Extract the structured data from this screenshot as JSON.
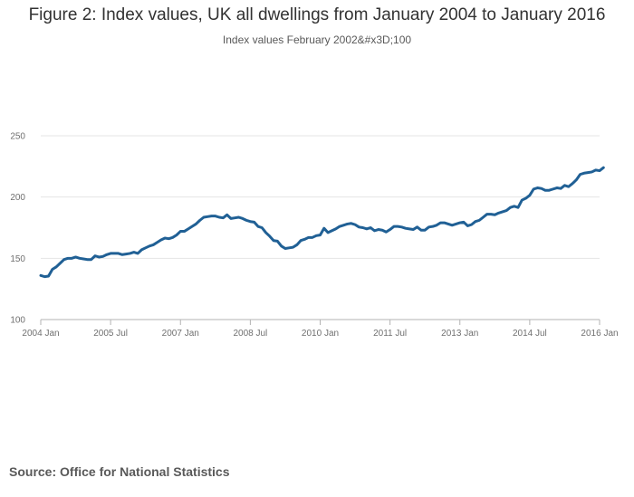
{
  "chart_data": {
    "type": "line",
    "title": "Figure 2: Index values, UK all dwellings from January 2004 to January 2016",
    "subtitle": "Index values February 2002&#x3D;100",
    "xlabel": "",
    "ylabel": "",
    "ylim": [
      100,
      250
    ],
    "yticks": [
      100,
      150,
      200,
      250
    ],
    "xlim": [
      0,
      144
    ],
    "xticks": [
      {
        "pos": 0,
        "label": "2004 Jan"
      },
      {
        "pos": 18,
        "label": "2005 Jul"
      },
      {
        "pos": 36,
        "label": "2007 Jan"
      },
      {
        "pos": 54,
        "label": "2008 Jul"
      },
      {
        "pos": 72,
        "label": "2010 Jan"
      },
      {
        "pos": 90,
        "label": "2011 Jul"
      },
      {
        "pos": 108,
        "label": "2013 Jan"
      },
      {
        "pos": 126,
        "label": "2014 Jul"
      },
      {
        "pos": 144,
        "label": "2016 Jan"
      }
    ],
    "grid": true,
    "legend": "none",
    "series": [
      {
        "color": "#206095",
        "values": [
          136,
          135,
          135.5,
          141,
          143,
          146,
          149,
          150,
          150,
          151,
          150,
          149.5,
          149,
          149,
          152,
          151,
          151.5,
          153,
          154,
          154,
          154,
          153,
          153.5,
          154,
          155,
          154,
          157,
          158.5,
          160,
          161,
          163,
          165,
          166.5,
          166,
          167,
          169,
          172,
          172,
          174,
          176,
          178,
          181,
          183.5,
          184,
          184.5,
          184.5,
          183.5,
          183,
          185.5,
          182.5,
          183,
          183.5,
          182.5,
          181,
          180,
          179.5,
          176,
          175,
          171,
          168,
          164.5,
          164,
          160,
          158,
          158.5,
          159,
          161,
          164.5,
          165.5,
          167,
          167,
          168.5,
          169,
          174.5,
          171,
          172.5,
          174,
          176,
          177,
          178,
          178.5,
          177.5,
          175.5,
          175,
          174,
          175,
          172.5,
          173.5,
          173,
          171.5,
          173.5,
          176,
          176,
          175.5,
          174.5,
          174,
          173.5,
          175.5,
          173,
          173,
          175.5,
          176,
          177,
          179,
          179,
          178,
          177,
          178,
          179,
          179.5,
          176.5,
          177.5,
          180,
          181,
          183.5,
          186,
          186,
          185.5,
          187,
          188,
          189,
          191.5,
          192.5,
          191.5,
          197.5,
          199,
          201.5,
          206.5,
          207.5,
          207,
          205.5,
          205.5,
          206.5,
          207.5,
          207,
          209.5,
          208.5,
          211,
          214,
          218.5,
          219.5,
          220,
          220.5,
          222,
          221.5,
          224
        ]
      }
    ]
  },
  "source": "Source: Office for National Statistics"
}
